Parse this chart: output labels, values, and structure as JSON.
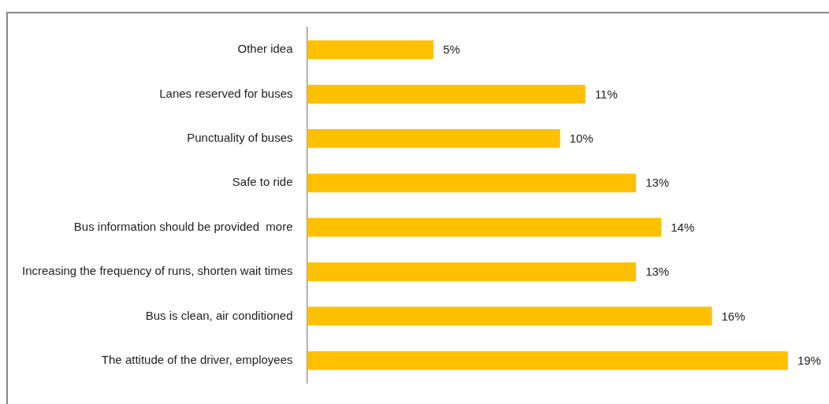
{
  "chart_data": {
    "type": "bar",
    "orientation": "horizontal",
    "categories": [
      "Other idea",
      "Lanes reserved for buses",
      "Punctuality of buses",
      "Safe to ride",
      "Bus information should be provided  more",
      "Increasing the frequency of runs, shorten wait times",
      "Bus is clean, air conditioned",
      "The attitude of the driver, employees"
    ],
    "values": [
      5,
      11,
      10,
      13,
      14,
      13,
      16,
      19
    ],
    "value_labels": [
      "5%",
      "11%",
      "10%",
      "13%",
      "14%",
      "13%",
      "16%",
      "19%"
    ],
    "color": "#ffc000"
  }
}
